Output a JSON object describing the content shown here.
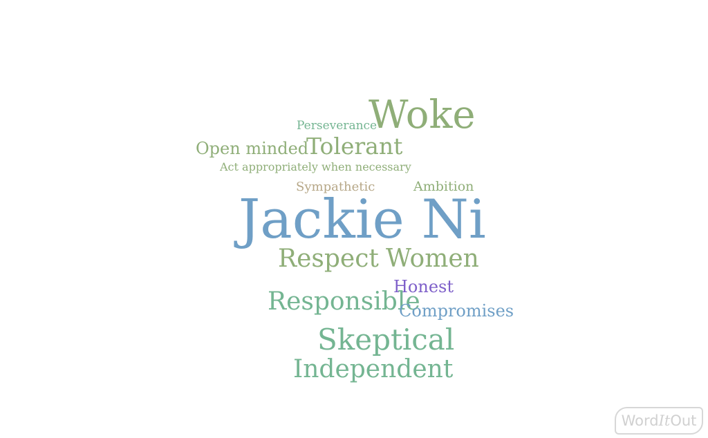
{
  "words": {
    "perseverance": "Perseverance",
    "woke": "Woke",
    "open_minded": "Open minded",
    "tolerant": "Tolerant",
    "act_appropriately": "Act appropriately when necessary",
    "sympathetic": "Sympathetic",
    "ambition": "Ambition",
    "jackie_ni": "Jackie Ni",
    "respect": "Respect",
    "women": "Women",
    "honest": "Honest",
    "responsible": "Responsible",
    "compromises": "Compromises",
    "skeptical": "Skeptical",
    "independent": "Independent"
  },
  "colors": {
    "green": "#8fae78",
    "teal": "#74b592",
    "blue": "#6f9fc6",
    "tan": "#b6a787",
    "purple": "#7e5fc9"
  },
  "brand": {
    "part1": "Word",
    "part2": "It",
    "part3": "Out"
  }
}
